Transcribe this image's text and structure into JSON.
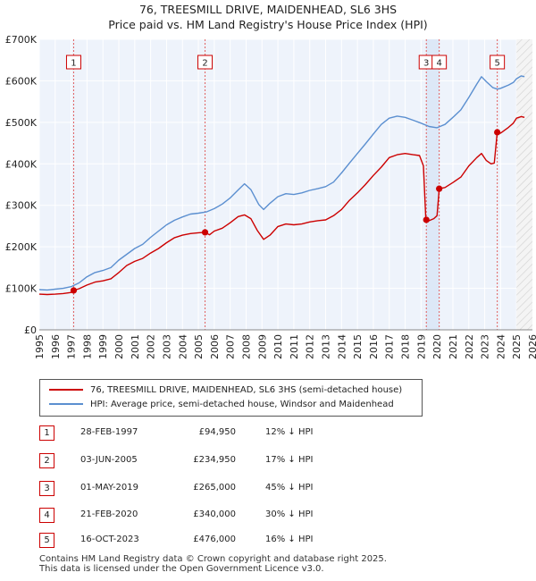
{
  "title_line1": "76, TREESMILL DRIVE, MAIDENHEAD, SL6 3HS",
  "title_line2": "Price paid vs. HM Land Registry's House Price Index (HPI)",
  "chart_data": {
    "type": "line",
    "x_range": [
      1995,
      2026
    ],
    "ylim": [
      0,
      700000
    ],
    "y_ticks": [
      {
        "value": 0,
        "label": "£0"
      },
      {
        "value": 100000,
        "label": "£100K"
      },
      {
        "value": 200000,
        "label": "£200K"
      },
      {
        "value": 300000,
        "label": "£300K"
      },
      {
        "value": 400000,
        "label": "£400K"
      },
      {
        "value": 500000,
        "label": "£500K"
      },
      {
        "value": 600000,
        "label": "£600K"
      },
      {
        "value": 700000,
        "label": "£700K"
      }
    ],
    "x_ticks": [
      1995,
      1996,
      1997,
      1998,
      1999,
      2000,
      2001,
      2002,
      2003,
      2004,
      2005,
      2006,
      2007,
      2008,
      2009,
      2010,
      2011,
      2012,
      2013,
      2014,
      2015,
      2016,
      2017,
      2018,
      2019,
      2020,
      2021,
      2022,
      2023,
      2024,
      2025,
      2026
    ],
    "future_shade_from": 2025.0,
    "colors": {
      "price_paid": "#cc0000",
      "hpi": "#5b8fd0",
      "band": "#dde8f7",
      "vline": "#e06060"
    },
    "series": [
      {
        "name": "76, TREESMILL DRIVE, MAIDENHEAD, SL6 3HS (semi-detached house)",
        "points": [
          [
            1995.0,
            86000
          ],
          [
            1995.5,
            85000
          ],
          [
            1996.0,
            86000
          ],
          [
            1996.5,
            87500
          ],
          [
            1997.0,
            90000
          ],
          [
            1997.16,
            94950
          ],
          [
            1997.5,
            99000
          ],
          [
            1998.0,
            108000
          ],
          [
            1998.5,
            115000
          ],
          [
            1999.0,
            118000
          ],
          [
            1999.5,
            123000
          ],
          [
            2000.0,
            138000
          ],
          [
            2000.5,
            155000
          ],
          [
            2001.0,
            165000
          ],
          [
            2001.5,
            172000
          ],
          [
            2002.0,
            185000
          ],
          [
            2002.5,
            196000
          ],
          [
            2003.0,
            210000
          ],
          [
            2003.5,
            222000
          ],
          [
            2004.0,
            228000
          ],
          [
            2004.5,
            232000
          ],
          [
            2005.0,
            234000
          ],
          [
            2005.42,
            234950
          ],
          [
            2005.7,
            229000
          ],
          [
            2006.0,
            238000
          ],
          [
            2006.5,
            245000
          ],
          [
            2007.0,
            258000
          ],
          [
            2007.5,
            273000
          ],
          [
            2007.9,
            277000
          ],
          [
            2008.3,
            268000
          ],
          [
            2008.7,
            240000
          ],
          [
            2009.1,
            218000
          ],
          [
            2009.5,
            228000
          ],
          [
            2010.0,
            249000
          ],
          [
            2010.5,
            255000
          ],
          [
            2011.0,
            253000
          ],
          [
            2011.5,
            255000
          ],
          [
            2012.0,
            260000
          ],
          [
            2012.5,
            263000
          ],
          [
            2013.0,
            265000
          ],
          [
            2013.5,
            275000
          ],
          [
            2014.0,
            290000
          ],
          [
            2014.5,
            312000
          ],
          [
            2015.0,
            330000
          ],
          [
            2015.5,
            350000
          ],
          [
            2016.0,
            372000
          ],
          [
            2016.5,
            392000
          ],
          [
            2017.0,
            415000
          ],
          [
            2017.5,
            422000
          ],
          [
            2018.0,
            425000
          ],
          [
            2018.5,
            422000
          ],
          [
            2018.9,
            420000
          ],
          [
            2019.15,
            395000
          ],
          [
            2019.3,
            265000
          ],
          [
            2019.5,
            263000
          ],
          [
            2019.8,
            268000
          ],
          [
            2020.0,
            275000
          ],
          [
            2020.14,
            340000
          ],
          [
            2020.5,
            343000
          ],
          [
            2021.0,
            355000
          ],
          [
            2021.5,
            368000
          ],
          [
            2022.0,
            395000
          ],
          [
            2022.5,
            415000
          ],
          [
            2022.8,
            425000
          ],
          [
            2023.1,
            408000
          ],
          [
            2023.4,
            400000
          ],
          [
            2023.6,
            402000
          ],
          [
            2023.79,
            476000
          ],
          [
            2024.0,
            474000
          ],
          [
            2024.5,
            488000
          ],
          [
            2024.8,
            498000
          ],
          [
            2025.0,
            510000
          ],
          [
            2025.3,
            514000
          ],
          [
            2025.5,
            512000
          ]
        ]
      },
      {
        "name": "HPI: Average price, semi-detached house, Windsor and Maidenhead",
        "points": [
          [
            1995.0,
            97000
          ],
          [
            1995.5,
            96000
          ],
          [
            1996.0,
            98000
          ],
          [
            1996.5,
            100000
          ],
          [
            1997.0,
            104000
          ],
          [
            1997.5,
            113000
          ],
          [
            1998.0,
            128000
          ],
          [
            1998.5,
            138000
          ],
          [
            1999.0,
            143000
          ],
          [
            1999.5,
            150000
          ],
          [
            2000.0,
            168000
          ],
          [
            2000.5,
            182000
          ],
          [
            2001.0,
            196000
          ],
          [
            2001.5,
            206000
          ],
          [
            2002.0,
            223000
          ],
          [
            2002.5,
            238000
          ],
          [
            2003.0,
            253000
          ],
          [
            2003.5,
            264000
          ],
          [
            2004.0,
            272000
          ],
          [
            2004.5,
            279000
          ],
          [
            2005.0,
            281000
          ],
          [
            2005.5,
            284000
          ],
          [
            2006.0,
            292000
          ],
          [
            2006.5,
            303000
          ],
          [
            2007.0,
            318000
          ],
          [
            2007.5,
            337000
          ],
          [
            2007.9,
            352000
          ],
          [
            2008.3,
            338000
          ],
          [
            2008.8,
            302000
          ],
          [
            2009.1,
            290000
          ],
          [
            2009.5,
            305000
          ],
          [
            2010.0,
            321000
          ],
          [
            2010.5,
            328000
          ],
          [
            2011.0,
            326000
          ],
          [
            2011.5,
            330000
          ],
          [
            2012.0,
            336000
          ],
          [
            2012.5,
            340000
          ],
          [
            2013.0,
            345000
          ],
          [
            2013.5,
            356000
          ],
          [
            2014.0,
            378000
          ],
          [
            2014.5,
            402000
          ],
          [
            2015.0,
            425000
          ],
          [
            2015.5,
            448000
          ],
          [
            2016.0,
            472000
          ],
          [
            2016.5,
            495000
          ],
          [
            2017.0,
            510000
          ],
          [
            2017.5,
            515000
          ],
          [
            2018.0,
            512000
          ],
          [
            2018.5,
            505000
          ],
          [
            2019.0,
            498000
          ],
          [
            2019.5,
            490000
          ],
          [
            2020.0,
            487000
          ],
          [
            2020.5,
            495000
          ],
          [
            2021.0,
            512000
          ],
          [
            2021.5,
            530000
          ],
          [
            2022.0,
            560000
          ],
          [
            2022.5,
            592000
          ],
          [
            2022.8,
            610000
          ],
          [
            2023.1,
            598000
          ],
          [
            2023.5,
            584000
          ],
          [
            2023.8,
            580000
          ],
          [
            2024.0,
            582000
          ],
          [
            2024.5,
            590000
          ],
          [
            2024.8,
            596000
          ],
          [
            2025.0,
            605000
          ],
          [
            2025.3,
            612000
          ],
          [
            2025.5,
            610000
          ]
        ]
      }
    ],
    "transactions": [
      {
        "label": "1",
        "x": 1997.16,
        "price": 94950
      },
      {
        "label": "2",
        "x": 2005.42,
        "price": 234950
      },
      {
        "label": "3",
        "x": 2019.33,
        "price": 265000
      },
      {
        "label": "4",
        "x": 2020.14,
        "price": 340000
      },
      {
        "label": "5",
        "x": 2023.79,
        "price": 476000
      }
    ],
    "shaded_bands": [
      [
        2019.33,
        2020.14
      ]
    ]
  },
  "legend": {
    "price_paid": "76, TREESMILL DRIVE, MAIDENHEAD, SL6 3HS (semi-detached house)",
    "hpi": "HPI: Average price, semi-detached house, Windsor and Maidenhead"
  },
  "table": [
    {
      "num": "1",
      "date": "28-FEB-1997",
      "price": "£94,950",
      "hpi": "12% ↓ HPI"
    },
    {
      "num": "2",
      "date": "03-JUN-2005",
      "price": "£234,950",
      "hpi": "17% ↓ HPI"
    },
    {
      "num": "3",
      "date": "01-MAY-2019",
      "price": "£265,000",
      "hpi": "45% ↓ HPI"
    },
    {
      "num": "4",
      "date": "21-FEB-2020",
      "price": "£340,000",
      "hpi": "30% ↓ HPI"
    },
    {
      "num": "5",
      "date": "16-OCT-2023",
      "price": "£476,000",
      "hpi": "16% ↓ HPI"
    }
  ],
  "footer_line1": "Contains HM Land Registry data © Crown copyright and database right 2025.",
  "footer_line2": "This data is licensed under the Open Government Licence v3.0."
}
